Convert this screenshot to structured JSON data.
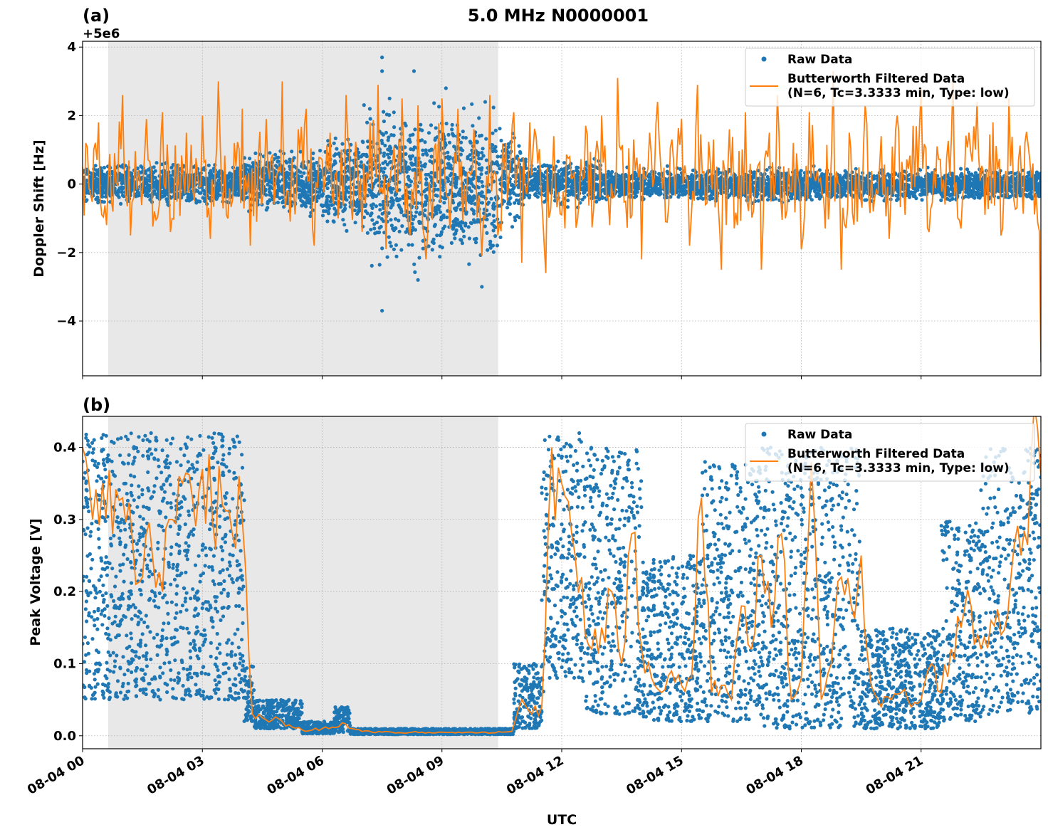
{
  "title": "5.0 MHz N0000001",
  "colors": {
    "raw": "#1f77b4",
    "filtered": "#ff7f0e",
    "shade": "#e8e8e8",
    "grid": "#b0b0b0"
  },
  "legend": {
    "raw_label": "Raw Data",
    "filtered_label_line1": "Butterworth Filtered Data",
    "filtered_label_line2": "(N=6, Tc=3.3333 min, Type: low)"
  },
  "xlabel": "UTC",
  "chart_data": [
    {
      "type": "scatter+line",
      "panel_label": "(a)",
      "offset_label": "+5e6",
      "ylabel": "Doppler Shift [Hz]",
      "xlim_hours": [
        0,
        24
      ],
      "ylim": [
        -5.6,
        4.17
      ],
      "yticks": [
        4,
        2,
        0,
        -2,
        -4
      ],
      "ytick_labels": [
        "4",
        "2",
        "0",
        "−2",
        "−4"
      ],
      "xticks_hours": [
        0,
        3,
        6,
        9,
        12,
        15,
        18,
        21
      ],
      "xtick_labels": [
        "08-04 00",
        "08-04 03",
        "08-04 06",
        "08-04 09",
        "08-04 12",
        "08-04 15",
        "08-04 18",
        "08-04 21"
      ],
      "shaded_span_hours": [
        0.64,
        10.41
      ],
      "grid": true,
      "legend_position": "top-right",
      "raw_envelope": [
        [
          0,
          4,
          -0.6,
          0.6
        ],
        [
          4,
          6,
          -0.9,
          1.0
        ],
        [
          6,
          7,
          -1.3,
          1.5
        ],
        [
          7,
          9,
          -2.5,
          2.4
        ],
        [
          9,
          10.5,
          -2.4,
          2.3
        ],
        [
          10.5,
          11,
          -1.2,
          1.6
        ],
        [
          11,
          13,
          -0.6,
          0.7
        ],
        [
          13,
          24,
          -0.5,
          0.45
        ]
      ],
      "raw_outliers": [
        [
          7.5,
          3.7
        ],
        [
          7.5,
          -3.7
        ],
        [
          7.5,
          3.3
        ],
        [
          8.3,
          3.3
        ],
        [
          9.1,
          2.8
        ],
        [
          10.0,
          -3.0
        ],
        [
          8.4,
          -2.8
        ]
      ],
      "filtered": [
        0.5,
        -0.3,
        1.8,
        -1.2,
        0.9,
        2.6,
        -1.5,
        0.4,
        1.9,
        -0.8,
        2.1,
        -1.4,
        0.6,
        1.5,
        -0.5,
        2.0,
        -1.6,
        3.0,
        -0.9,
        1.2,
        2.2,
        -1.8,
        0.8,
        1.9,
        -0.6,
        3.0,
        -1.1,
        1.6,
        2.2,
        -1.8,
        0.7,
        1.5,
        -1.0,
        2.6,
        0.2,
        -1.4,
        1.8,
        2.9,
        -1.9,
        1.1,
        2.5,
        -1.5,
        2.3,
        -2.2,
        1.0,
        2.5,
        -1.3,
        2.2,
        -0.8,
        1.6,
        -2.1,
        2.6,
        -1.5,
        1.2,
        2.1,
        -2.3,
        1.8,
        0.6,
        -2.6,
        1.4,
        -0.9,
        0.8,
        -1.0,
        1.7,
        -0.7,
        2.0,
        -1.2,
        3.1,
        -0.5,
        1.3,
        -2.2,
        1.5,
        2.4,
        -1.1,
        0.7,
        1.9,
        -1.8,
        2.9,
        -0.6,
        1.3,
        -2.5,
        1.6,
        -1.2,
        2.1,
        -0.8,
        -2.5,
        1.5,
        2.6,
        -1.0,
        1.2,
        -1.9,
        2.1,
        0.4,
        -1.3,
        3.3,
        -2.5,
        1.5,
        -1.1,
        2.3,
        -0.8,
        1.4,
        -1.6,
        2.0,
        -0.9,
        1.7,
        2.8,
        -1.4,
        1.1,
        -0.6,
        3.2,
        -1.3,
        1.5,
        2.4,
        -0.9,
        1.8,
        -1.5,
        2.5,
        -0.7,
        1.2,
        0.6,
        -5.2
      ]
    },
    {
      "type": "scatter+line",
      "panel_label": "(b)",
      "ylabel": "Peak Voltage [V]",
      "xlim_hours": [
        0,
        24
      ],
      "ylim": [
        -0.018,
        0.443
      ],
      "yticks": [
        0.4,
        0.3,
        0.2,
        0.1,
        0.0
      ],
      "ytick_labels": [
        "0.4",
        "0.3",
        "0.2",
        "0.1",
        "0.0"
      ],
      "xticks_hours": [
        0,
        3,
        6,
        9,
        12,
        15,
        18,
        21
      ],
      "xtick_labels": [
        "08-04 00",
        "08-04 03",
        "08-04 06",
        "08-04 09",
        "08-04 12",
        "08-04 15",
        "08-04 18",
        "08-04 21"
      ],
      "shaded_span_hours": [
        0.64,
        10.41
      ],
      "grid": true,
      "legend_position": "top-right",
      "raw_envelope": [
        [
          0,
          4.05,
          0.05,
          0.42
        ],
        [
          4.05,
          4.3,
          0.02,
          0.1
        ],
        [
          4.3,
          5.5,
          0.01,
          0.05
        ],
        [
          5.5,
          6.3,
          0.003,
          0.02
        ],
        [
          6.3,
          6.7,
          0.005,
          0.04
        ],
        [
          6.7,
          10.8,
          0.002,
          0.01
        ],
        [
          10.8,
          11.5,
          0.01,
          0.1
        ],
        [
          11.5,
          11.65,
          0.05,
          0.42
        ],
        [
          11.65,
          12.5,
          0.08,
          0.42
        ],
        [
          12.5,
          14,
          0.03,
          0.4
        ],
        [
          14,
          15.5,
          0.02,
          0.25
        ],
        [
          15.5,
          17,
          0.02,
          0.38
        ],
        [
          17,
          19.5,
          0.01,
          0.4
        ],
        [
          19.5,
          21.5,
          0.01,
          0.15
        ],
        [
          21.5,
          22.5,
          0.02,
          0.3
        ],
        [
          22.5,
          24,
          0.03,
          0.4
        ]
      ],
      "raw_outliers": [],
      "filtered": [
        0.4,
        0.3,
        0.35,
        0.28,
        0.33,
        0.27,
        0.22,
        0.25,
        0.2,
        0.3,
        0.35,
        0.33,
        0.37,
        0.3,
        0.32,
        0.28,
        0.3,
        0.03,
        0.025,
        0.022,
        0.02,
        0.012,
        0.008,
        0.008,
        0.01,
        0.012,
        0.018,
        0.01,
        0.006,
        0.005,
        0.005,
        0.005,
        0.004,
        0.005,
        0.005,
        0.004,
        0.005,
        0.005,
        0.004,
        0.005,
        0.005,
        0.004,
        0.005,
        0.006,
        0.05,
        0.03,
        0.04,
        0.4,
        0.35,
        0.28,
        0.22,
        0.12,
        0.15,
        0.2,
        0.1,
        0.28,
        0.12,
        0.08,
        0.06,
        0.09,
        0.07,
        0.08,
        0.33,
        0.06,
        0.07,
        0.05,
        0.18,
        0.12,
        0.25,
        0.15,
        0.28,
        0.05,
        0.08,
        0.38,
        0.05,
        0.1,
        0.22,
        0.18,
        0.25,
        0.07,
        0.04,
        0.05,
        0.06,
        0.04,
        0.05,
        0.1,
        0.06,
        0.12,
        0.15,
        0.18,
        0.12,
        0.16,
        0.14,
        0.22,
        0.25,
        0.38,
        0.36
      ]
    }
  ]
}
